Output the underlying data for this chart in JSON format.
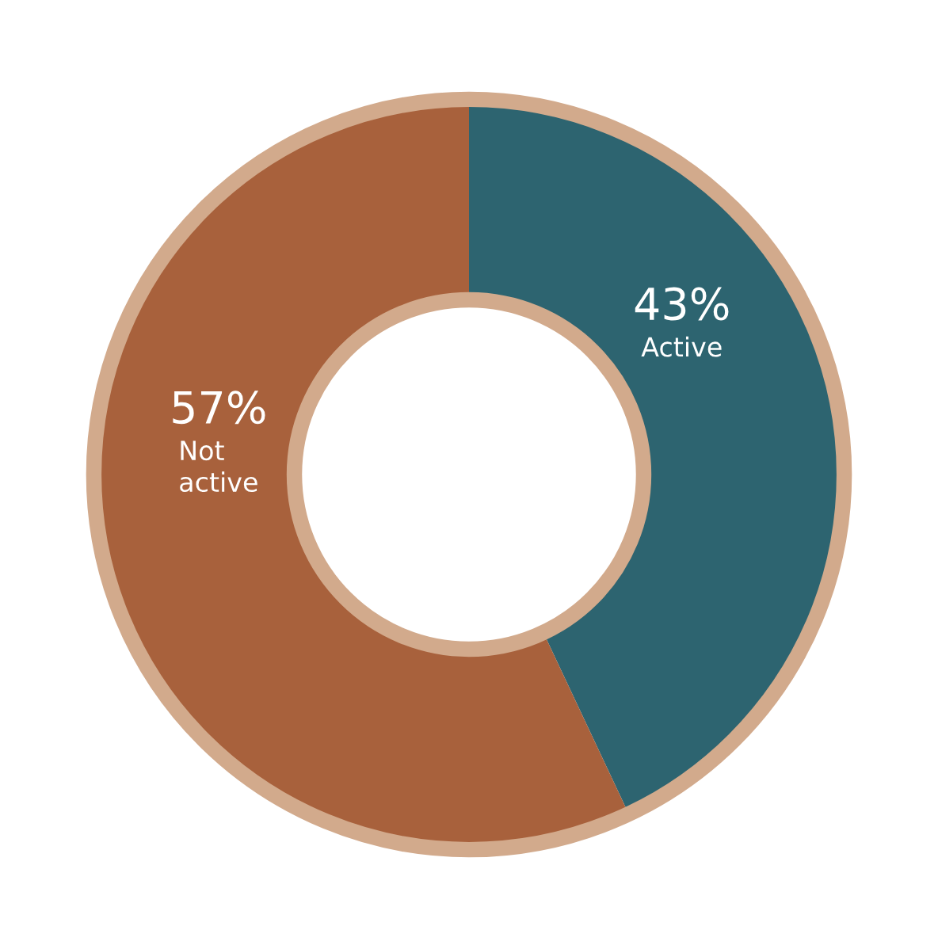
{
  "chart_data": {
    "type": "donut",
    "categories": [
      "Active",
      "Not\nactive"
    ],
    "values": [
      43,
      57
    ],
    "colors": [
      "#2d6470",
      "#a8613c"
    ],
    "value_labels": [
      "43%",
      "57%"
    ],
    "legend": false
  }
}
